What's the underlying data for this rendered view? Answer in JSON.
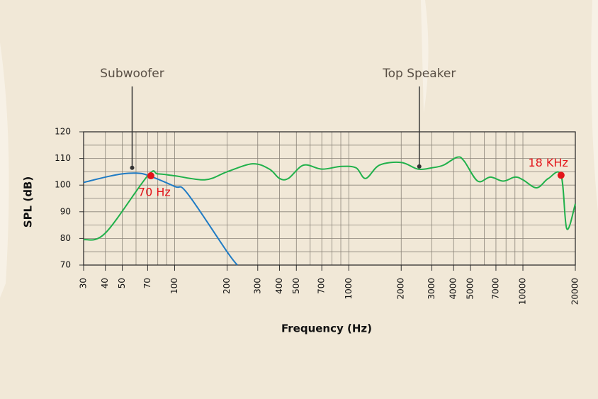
{
  "chart_data": {
    "type": "line",
    "x_label": "Frequency (Hz)",
    "y_label": "SPL (dB)",
    "xscale": "log",
    "xlim": [
      30,
      20000
    ],
    "ylim": [
      70,
      120
    ],
    "xticks": [
      30,
      40,
      50,
      70,
      100,
      200,
      300,
      400,
      500,
      700,
      1000,
      2000,
      3000,
      4000,
      5000,
      7000,
      10000,
      20000
    ],
    "xminor": [
      60,
      80,
      90,
      600,
      800,
      900,
      6000,
      8000,
      9000
    ],
    "yticks": [
      70,
      80,
      90,
      100,
      110,
      120
    ],
    "yminor": [
      75,
      85,
      95,
      105,
      115
    ],
    "grid": true,
    "series": [
      {
        "name": "Subwoofer",
        "color": "#1f7bc4",
        "x": [
          30,
          40,
          50,
          60,
          70,
          100,
          118,
          200,
          229
        ],
        "values": [
          101,
          103,
          104.2,
          104.5,
          103.7,
          99.5,
          97,
          75,
          70
        ]
      },
      {
        "name": "Top Speaker",
        "color": "#21b14b",
        "x": [
          30,
          40,
          70,
          80,
          100,
          150,
          200,
          280,
          350,
          400,
          450,
          550,
          700,
          900,
          1100,
          1250,
          1500,
          2000,
          2500,
          3000,
          3500,
          4200,
          4600,
          5500,
          6500,
          7700,
          9000,
          10000,
          12000,
          14000,
          16560,
          17860,
          20000
        ],
        "values": [
          79.5,
          82,
          103.5,
          104.2,
          103.5,
          102,
          105,
          108,
          106,
          102.5,
          102.5,
          107.5,
          106,
          107,
          106.5,
          102.5,
          107.5,
          108.5,
          106,
          106.5,
          107.5,
          110.5,
          109,
          101.5,
          103,
          101.5,
          103,
          102,
          99,
          102.5,
          103.7,
          83.6,
          93
        ]
      }
    ],
    "annotations": [
      {
        "text": "Subwoofer",
        "x": 57,
        "y": 106.5
      },
      {
        "text": "Top Speaker",
        "x": 2540,
        "y": 107
      }
    ],
    "points": [
      {
        "text": "70 Hz",
        "x": 73,
        "y": 103.5,
        "color": "#e3151b"
      },
      {
        "text": "18 KHz",
        "x": 16560,
        "y": 103.7,
        "color": "#e3151b"
      }
    ]
  }
}
